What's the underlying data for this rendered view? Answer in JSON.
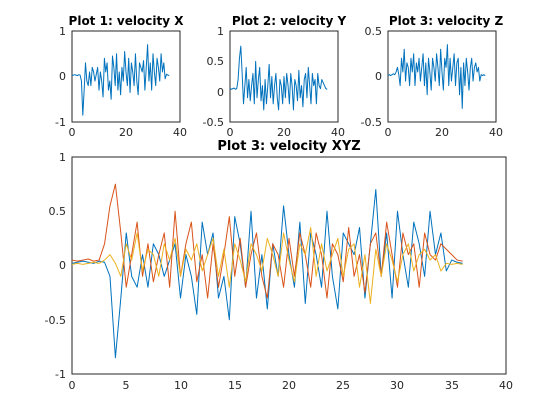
{
  "chart_data": [
    {
      "type": "line",
      "title": "Plot 1: velocity X",
      "xlabel": "",
      "ylabel": "",
      "xlim": [
        0,
        40
      ],
      "ylim": [
        -1,
        1
      ],
      "xticks": [
        "0",
        "20",
        "40"
      ],
      "yticks": [
        "1",
        "0",
        "-1"
      ],
      "grid": false,
      "series": [
        {
          "color": "#0072BD",
          "x": [
            0,
            0.5,
            1,
            1.5,
            2,
            2.5,
            3,
            3.5,
            4,
            4.5,
            5,
            5.5,
            6,
            6.5,
            7,
            7.5,
            8,
            8.5,
            9,
            9.5,
            10,
            10.5,
            11,
            11.5,
            12,
            12.5,
            13,
            13.5,
            14,
            14.5,
            15,
            15.5,
            16,
            16.5,
            17,
            17.5,
            18,
            18.5,
            19,
            19.5,
            20,
            20.5,
            21,
            21.5,
            22,
            22.5,
            23,
            23.5,
            24,
            24.5,
            25,
            25.5,
            26,
            26.5,
            27,
            27.5,
            28,
            28.5,
            29,
            29.5,
            30,
            30.5,
            31,
            31.5,
            32,
            32.5,
            33,
            33.5,
            34,
            34.5,
            35,
            35.5,
            36
          ],
          "y": [
            0.02,
            0.03,
            0.04,
            0.03,
            0.02,
            0.04,
            0.03,
            -0.1,
            -0.85,
            -0.3,
            0.3,
            -0.1,
            -0.2,
            0.1,
            -0.2,
            0.2,
            0.1,
            -0.1,
            0.05,
            0.2,
            -0.3,
            0.1,
            -0.1,
            -0.45,
            0.4,
            0.1,
            0.3,
            -0.3,
            -0.1,
            -0.5,
            0.45,
            0.2,
            -0.2,
            0.5,
            -0.3,
            0.1,
            -0.4,
            0.2,
            -0.1,
            0.55,
            0.1,
            -0.2,
            0.4,
            -0.35,
            0.3,
            0.1,
            -0.2,
            0.5,
            -0.1,
            -0.4,
            0.3,
            0.2,
            0.1,
            0.35,
            -0.3,
            0.2,
            0.7,
            -0.1,
            0.3,
            -0.3,
            0.5,
            0.1,
            -0.2,
            0.4,
            0.2,
            -0.1,
            0.5,
            0.1,
            0.3,
            -0.05,
            0.05,
            0.03,
            0.02
          ]
        }
      ]
    },
    {
      "type": "line",
      "title": "Plot 2: velocity Y",
      "xlabel": "",
      "ylabel": "",
      "xlim": [
        0,
        40
      ],
      "ylim": [
        -0.5,
        1
      ],
      "xticks": [
        "0",
        "20",
        "40"
      ],
      "yticks": [
        "1",
        "0.5",
        "0",
        "-0.5"
      ],
      "grid": false,
      "series": [
        {
          "color": "#0072BD",
          "x": [
            0,
            0.5,
            1,
            1.5,
            2,
            2.5,
            3,
            3.5,
            4,
            4.5,
            5,
            5.5,
            6,
            6.5,
            7,
            7.5,
            8,
            8.5,
            9,
            9.5,
            10,
            10.5,
            11,
            11.5,
            12,
            12.5,
            13,
            13.5,
            14,
            14.5,
            15,
            15.5,
            16,
            16.5,
            17,
            17.5,
            18,
            18.5,
            19,
            19.5,
            20,
            20.5,
            21,
            21.5,
            22,
            22.5,
            23,
            23.5,
            24,
            24.5,
            25,
            25.5,
            26,
            26.5,
            27,
            27.5,
            28,
            28.5,
            29,
            29.5,
            30,
            30.5,
            31,
            31.5,
            32,
            32.5,
            33,
            33.5,
            34,
            34.5,
            35,
            35.5,
            36
          ],
          "y": [
            0.05,
            0.04,
            0.05,
            0.06,
            0.04,
            0.05,
            0.2,
            0.55,
            0.75,
            0.3,
            -0.2,
            0.1,
            0.4,
            -0.1,
            0.2,
            -0.15,
            0.1,
            0.3,
            -0.2,
            0.5,
            -0.1,
            0.2,
            0.4,
            -0.15,
            0.1,
            -0.3,
            0.2,
            -0.2,
            0.1,
            0.45,
            -0.1,
            0.25,
            -0.2,
            0.1,
            0.3,
            -0.1,
            -0.3,
            0.2,
            0.1,
            -0.2,
            0.25,
            -0.1,
            0.3,
            0.1,
            -0.2,
            0.3,
            0.1,
            -0.3,
            0.2,
            0.1,
            -0.15,
            0.35,
            -0.1,
            0.1,
            -0.25,
            0.2,
            0.3,
            -0.1,
            0.4,
            0.1,
            -0.2,
            0.3,
            0.1,
            0.2,
            -0.2,
            0.3,
            0.1,
            0.05,
            0.2,
            0.15,
            0.1,
            0.05,
            0.04
          ]
        }
      ]
    },
    {
      "type": "line",
      "title": "Plot 3: velocity Z",
      "xlabel": "",
      "ylabel": "",
      "xlim": [
        0,
        40
      ],
      "ylim": [
        -0.5,
        0.5
      ],
      "xticks": [
        "0",
        "20",
        "40"
      ],
      "yticks": [
        "0.5",
        "0",
        "-0.5"
      ],
      "grid": false,
      "series": [
        {
          "color": "#0072BD",
          "x": [
            0,
            0.5,
            1,
            1.5,
            2,
            2.5,
            3,
            3.5,
            4,
            4.5,
            5,
            5.5,
            6,
            6.5,
            7,
            7.5,
            8,
            8.5,
            9,
            9.5,
            10,
            10.5,
            11,
            11.5,
            12,
            12.5,
            13,
            13.5,
            14,
            14.5,
            15,
            15.5,
            16,
            16.5,
            17,
            17.5,
            18,
            18.5,
            19,
            19.5,
            20,
            20.5,
            21,
            21.5,
            22,
            22.5,
            23,
            23.5,
            24,
            24.5,
            25,
            25.5,
            26,
            26.5,
            27,
            27.5,
            28,
            28.5,
            29,
            29.5,
            30,
            30.5,
            31,
            31.5,
            32,
            32.5,
            33,
            33.5,
            34,
            34.5,
            35,
            35.5,
            36
          ],
          "y": [
            0.01,
            0.02,
            0.01,
            0.02,
            0.03,
            0.02,
            0.05,
            0.1,
            0.02,
            -0.1,
            0.2,
            0.05,
            0.3,
            -0.05,
            0.15,
            0.1,
            -0.1,
            0.2,
            0.05,
            0.25,
            -0.1,
            0.15,
            0.05,
            0.2,
            -0.05,
            0.1,
            0.25,
            -0.1,
            0.15,
            -0.2,
            0.2,
            0.05,
            -0.15,
            0.2,
            0.1,
            -0.05,
            0.25,
            0.1,
            -0.1,
            0.3,
            0.05,
            -0.15,
            0.2,
            0.1,
            0.35,
            -0.1,
            0.2,
            -0.05,
            0.1,
            0.25,
            -0.1,
            0.15,
            0.2,
            -0.2,
            0.1,
            -0.35,
            0.15,
            -0.1,
            0.2,
            0.05,
            -0.15,
            0.1,
            0.2,
            -0.05,
            0.1,
            0.15,
            0.05,
            0.1,
            -0.05,
            0.02,
            0.01,
            0.02,
            0.01
          ]
        }
      ]
    },
    {
      "type": "line",
      "title": "Plot 3: velocity XYZ",
      "xlabel": "",
      "ylabel": "",
      "xlim": [
        0,
        40
      ],
      "ylim": [
        -1,
        1
      ],
      "xticks": [
        "0",
        "5",
        "10",
        "15",
        "20",
        "25",
        "30",
        "35",
        "40"
      ],
      "yticks": [
        "1",
        "0.5",
        "0",
        "-0.5",
        "-1"
      ],
      "grid": false,
      "series": [
        {
          "color": "#0072BD",
          "x": [
            0,
            0.5,
            1,
            1.5,
            2,
            2.5,
            3,
            3.5,
            4,
            4.5,
            5,
            5.5,
            6,
            6.5,
            7,
            7.5,
            8,
            8.5,
            9,
            9.5,
            10,
            10.5,
            11,
            11.5,
            12,
            12.5,
            13,
            13.5,
            14,
            14.5,
            15,
            15.5,
            16,
            16.5,
            17,
            17.5,
            18,
            18.5,
            19,
            19.5,
            20,
            20.5,
            21,
            21.5,
            22,
            22.5,
            23,
            23.5,
            24,
            24.5,
            25,
            25.5,
            26,
            26.5,
            27,
            27.5,
            28,
            28.5,
            29,
            29.5,
            30,
            30.5,
            31,
            31.5,
            32,
            32.5,
            33,
            33.5,
            34,
            34.5,
            35,
            35.5,
            36
          ],
          "y": [
            0.02,
            0.03,
            0.04,
            0.03,
            0.02,
            0.04,
            0.03,
            -0.1,
            -0.85,
            -0.3,
            0.3,
            -0.1,
            -0.2,
            0.1,
            -0.2,
            0.2,
            0.1,
            -0.1,
            0.05,
            0.2,
            -0.3,
            0.1,
            -0.1,
            -0.45,
            0.4,
            0.1,
            0.3,
            -0.3,
            -0.1,
            -0.5,
            0.45,
            0.2,
            -0.2,
            0.5,
            -0.3,
            0.1,
            -0.4,
            0.2,
            -0.1,
            0.55,
            0.1,
            -0.2,
            0.4,
            -0.35,
            0.3,
            0.1,
            -0.2,
            0.5,
            -0.1,
            -0.4,
            0.3,
            0.2,
            0.1,
            0.35,
            -0.3,
            0.2,
            0.7,
            -0.1,
            0.3,
            -0.3,
            0.5,
            0.1,
            -0.2,
            0.4,
            0.2,
            -0.1,
            0.5,
            0.1,
            0.3,
            -0.05,
            0.05,
            0.03,
            0.02
          ]
        },
        {
          "color": "#D95319",
          "x": [
            0,
            0.5,
            1,
            1.5,
            2,
            2.5,
            3,
            3.5,
            4,
            4.5,
            5,
            5.5,
            6,
            6.5,
            7,
            7.5,
            8,
            8.5,
            9,
            9.5,
            10,
            10.5,
            11,
            11.5,
            12,
            12.5,
            13,
            13.5,
            14,
            14.5,
            15,
            15.5,
            16,
            16.5,
            17,
            17.5,
            18,
            18.5,
            19,
            19.5,
            20,
            20.5,
            21,
            21.5,
            22,
            22.5,
            23,
            23.5,
            24,
            24.5,
            25,
            25.5,
            26,
            26.5,
            27,
            27.5,
            28,
            28.5,
            29,
            29.5,
            30,
            30.5,
            31,
            31.5,
            32,
            32.5,
            33,
            33.5,
            34,
            34.5,
            35,
            35.5,
            36
          ],
          "y": [
            0.05,
            0.04,
            0.05,
            0.06,
            0.04,
            0.05,
            0.2,
            0.55,
            0.75,
            0.3,
            -0.2,
            0.1,
            0.4,
            -0.1,
            0.2,
            -0.15,
            0.1,
            0.3,
            -0.2,
            0.5,
            -0.1,
            0.2,
            0.4,
            -0.15,
            0.1,
            -0.3,
            0.2,
            -0.2,
            0.1,
            0.45,
            -0.1,
            0.25,
            -0.2,
            0.1,
            0.3,
            -0.1,
            -0.3,
            0.2,
            0.1,
            -0.2,
            0.25,
            -0.1,
            0.3,
            0.1,
            -0.2,
            0.3,
            0.1,
            -0.3,
            0.2,
            0.1,
            -0.15,
            0.35,
            -0.1,
            0.1,
            -0.25,
            0.2,
            0.3,
            -0.1,
            0.4,
            0.1,
            -0.2,
            0.3,
            0.1,
            0.2,
            -0.2,
            0.3,
            0.1,
            0.05,
            0.2,
            0.15,
            0.1,
            0.05,
            0.04
          ]
        },
        {
          "color": "#EDB120",
          "x": [
            0,
            0.5,
            1,
            1.5,
            2,
            2.5,
            3,
            3.5,
            4,
            4.5,
            5,
            5.5,
            6,
            6.5,
            7,
            7.5,
            8,
            8.5,
            9,
            9.5,
            10,
            10.5,
            11,
            11.5,
            12,
            12.5,
            13,
            13.5,
            14,
            14.5,
            15,
            15.5,
            16,
            16.5,
            17,
            17.5,
            18,
            18.5,
            19,
            19.5,
            20,
            20.5,
            21,
            21.5,
            22,
            22.5,
            23,
            23.5,
            24,
            24.5,
            25,
            25.5,
            26,
            26.5,
            27,
            27.5,
            28,
            28.5,
            29,
            29.5,
            30,
            30.5,
            31,
            31.5,
            32,
            32.5,
            33,
            33.5,
            34,
            34.5,
            35,
            35.5,
            36
          ],
          "y": [
            0.01,
            0.02,
            0.01,
            0.02,
            0.03,
            0.02,
            0.05,
            0.1,
            0.02,
            -0.1,
            0.2,
            0.05,
            0.3,
            -0.05,
            0.15,
            0.1,
            -0.1,
            0.2,
            0.05,
            0.25,
            -0.1,
            0.15,
            0.05,
            0.2,
            -0.05,
            0.1,
            0.25,
            -0.1,
            0.15,
            -0.2,
            0.2,
            0.05,
            -0.15,
            0.2,
            0.1,
            -0.05,
            0.25,
            0.1,
            -0.1,
            0.3,
            0.05,
            -0.15,
            0.2,
            0.1,
            0.35,
            -0.1,
            0.2,
            -0.05,
            0.1,
            0.25,
            -0.1,
            0.15,
            0.2,
            -0.2,
            0.1,
            -0.35,
            0.15,
            -0.1,
            0.2,
            0.05,
            -0.15,
            0.1,
            0.2,
            -0.05,
            0.1,
            0.15,
            0.05,
            0.1,
            -0.05,
            0.02,
            0.01,
            0.02,
            0.01
          ]
        }
      ]
    }
  ]
}
